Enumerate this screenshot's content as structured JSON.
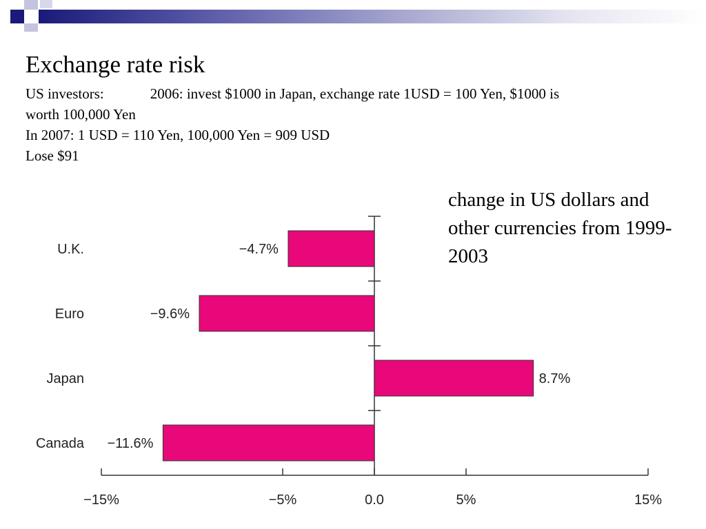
{
  "slide": {
    "title": "Exchange rate risk",
    "lines": {
      "l1a": "US investors:",
      "l1b": "2006: invest $1000 in Japan, exchange rate 1USD = 100 Yen, $1000 is",
      "l2": "worth 100,000 Yen",
      "l3": "In 2007: 1 USD = 110 Yen, 100,000 Yen = 909 USD",
      "l4": "Lose $91"
    },
    "caption": "change in US dollars and other currencies from 1999-2003"
  },
  "colors": {
    "bar": "#e8087a",
    "header_dark": "#1a1a7a",
    "header_light": "#a8a8d0"
  },
  "chart_data": {
    "type": "bar",
    "orientation": "horizontal",
    "title": "",
    "xlabel": "",
    "ylabel": "",
    "categories": [
      "U.K.",
      "Euro",
      "Japan",
      "Canada"
    ],
    "values": [
      -4.7,
      -9.6,
      8.7,
      -11.6
    ],
    "value_labels": [
      "−4.7%",
      "−9.6%",
      "8.7%",
      "−11.6%"
    ],
    "xlim": [
      -15,
      15
    ],
    "x_ticks": [
      -15,
      -5,
      0,
      5,
      15
    ],
    "x_tick_labels": [
      "−15%",
      "−5%",
      "0.0",
      "5%",
      "15%"
    ],
    "grid": false,
    "legend": "none"
  }
}
